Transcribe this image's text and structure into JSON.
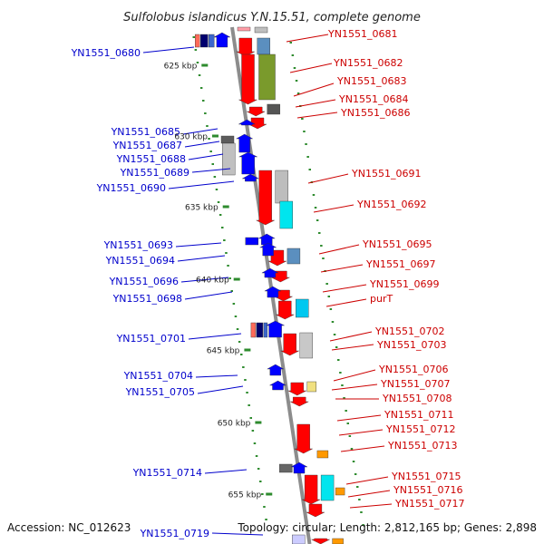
{
  "title": "Sulfolobus islandicus Y.N.15.51, complete genome",
  "footer": {
    "accession": "Accession: NC_012623",
    "stats": "Topology: circular; Length: 2,812,165 bp; Genes: 2,898"
  },
  "colors": {
    "backbone": "#8c8c8c",
    "tick": "#2e8b2e",
    "forward_label": "#cc0000",
    "reverse_label": "#0000cc"
  },
  "kbp_ticks": [
    "625 kbp",
    "630 kbp",
    "635 kbp",
    "640 kbp",
    "645 kbp",
    "650 kbp",
    "655 kbp"
  ],
  "forward_genes": [
    {
      "name": "YN1551_0681"
    },
    {
      "name": "YN1551_0682"
    },
    {
      "name": "YN1551_0683"
    },
    {
      "name": "YN1551_0684"
    },
    {
      "name": "YN1551_0686"
    },
    {
      "name": "YN1551_0691"
    },
    {
      "name": "YN1551_0692"
    },
    {
      "name": "YN1551_0695"
    },
    {
      "name": "YN1551_0697"
    },
    {
      "name": "YN1551_0699"
    },
    {
      "name": "purT"
    },
    {
      "name": "YN1551_0702"
    },
    {
      "name": "YN1551_0703"
    },
    {
      "name": "YN1551_0706"
    },
    {
      "name": "YN1551_0707"
    },
    {
      "name": "YN1551_0708"
    },
    {
      "name": "YN1551_0711"
    },
    {
      "name": "YN1551_0712"
    },
    {
      "name": "YN1551_0713"
    },
    {
      "name": "YN1551_0715"
    },
    {
      "name": "YN1551_0716"
    },
    {
      "name": "YN1551_0717"
    }
  ],
  "reverse_genes": [
    {
      "name": "YN1551_0680"
    },
    {
      "name": "YN1551_0685"
    },
    {
      "name": "YN1551_0687"
    },
    {
      "name": "YN1551_0688"
    },
    {
      "name": "YN1551_0689"
    },
    {
      "name": "YN1551_0690"
    },
    {
      "name": "YN1551_0693"
    },
    {
      "name": "YN1551_0694"
    },
    {
      "name": "YN1551_0696"
    },
    {
      "name": "YN1551_0698"
    },
    {
      "name": "YN1551_0701"
    },
    {
      "name": "YN1551_0704"
    },
    {
      "name": "YN1551_0705"
    },
    {
      "name": "YN1551_0714"
    },
    {
      "name": "YN1551_0719"
    }
  ]
}
